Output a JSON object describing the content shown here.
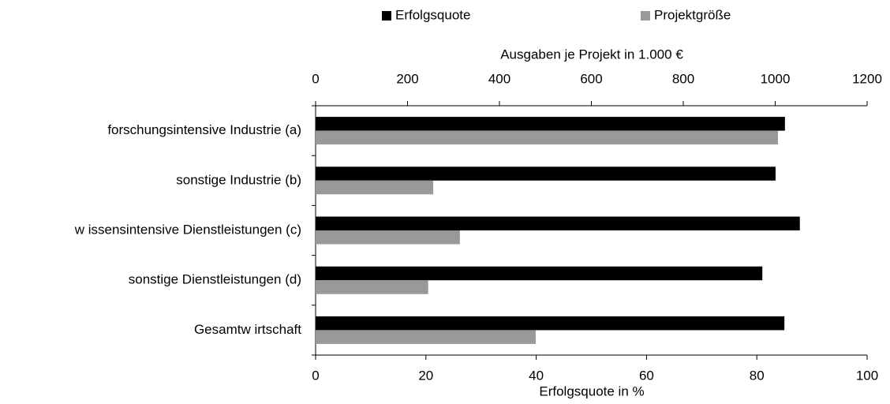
{
  "chart_data": {
    "type": "bar",
    "orientation": "horizontal",
    "categories": [
      "forschungsintensive Industrie (a)",
      "sonstige Industrie (b)",
      "w issensintensive Dienstleistungen (c)",
      "sonstige Dienstleistungen (d)",
      "Gesamtw irtschaft"
    ],
    "series": [
      {
        "name": "Erfolgsquote",
        "color": "#000000",
        "values": [
          85.1,
          83.4,
          87.8,
          81.0,
          85.0
        ]
      },
      {
        "name": "Projektgröße",
        "color": "#999999",
        "axis": "x2",
        "values": [
          1006,
          256,
          314,
          245,
          479
        ]
      }
    ],
    "xlabel": "Erfolgsquote in %",
    "xlim": [
      0,
      100
    ],
    "xticks": [
      0,
      20,
      40,
      60,
      80,
      100
    ],
    "x2label": "Ausgaben je Projekt in 1.000 €",
    "x2lim": [
      0,
      1200
    ],
    "x2ticks": [
      0,
      200,
      400,
      600,
      800,
      1000,
      1200
    ],
    "legend": "top"
  }
}
